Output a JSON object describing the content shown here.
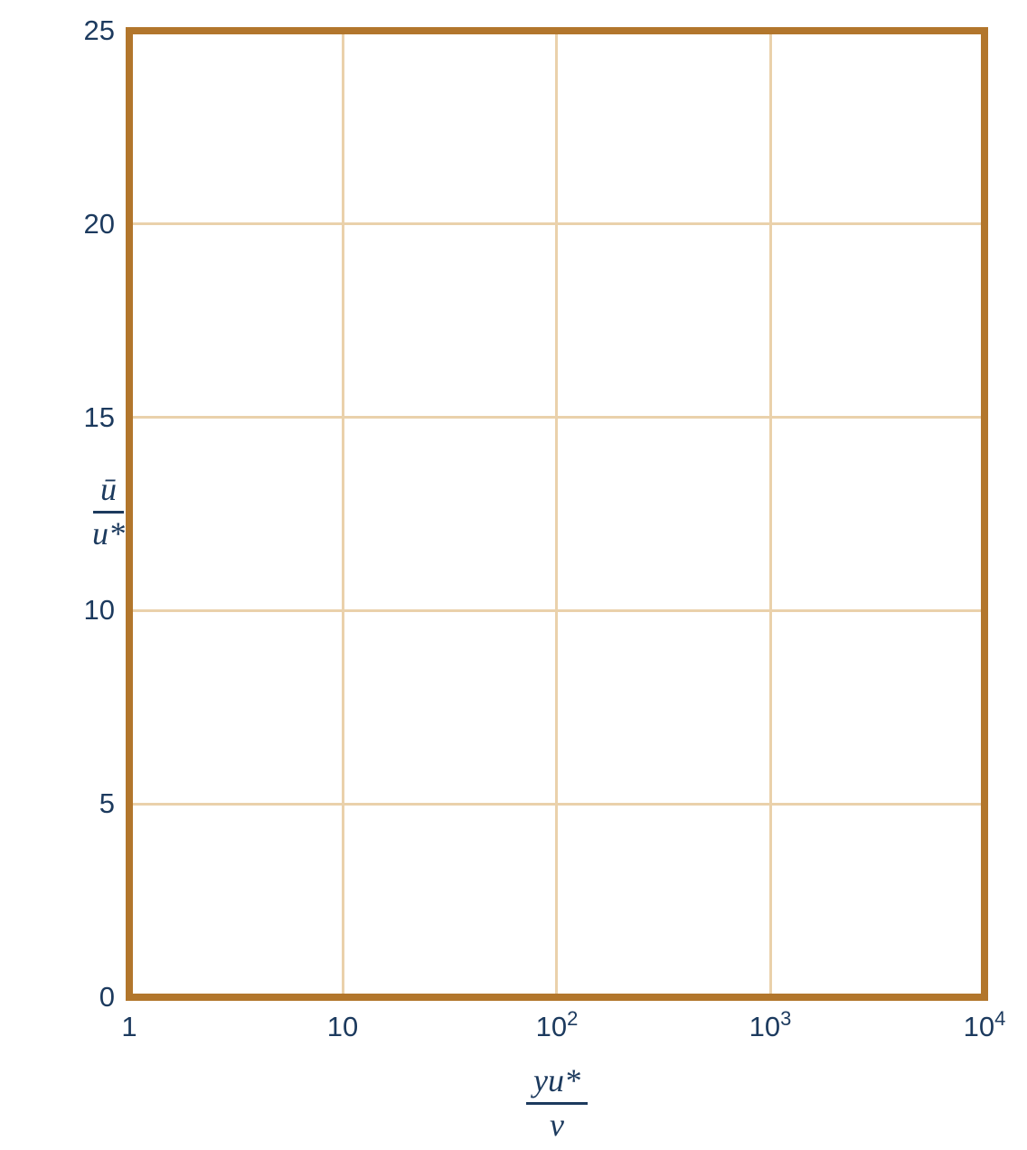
{
  "colors": {
    "background": "#ffffff",
    "plot_border": "#b2762c",
    "grid": "#ead1ab",
    "text": "#1c3a5e"
  },
  "chart_data": {
    "type": "line",
    "title": "",
    "grid": true,
    "legend": false,
    "series": [],
    "x_axis": {
      "scale": "log",
      "range": [
        1,
        10000
      ],
      "title_numerator": "yu*",
      "title_denominator": "v",
      "tick_values": [
        1,
        10,
        100,
        1000,
        10000
      ],
      "tick_labels": [
        {
          "base": "1",
          "exp": ""
        },
        {
          "base": "10",
          "exp": ""
        },
        {
          "base": "10",
          "exp": "2"
        },
        {
          "base": "10",
          "exp": "3"
        },
        {
          "base": "10",
          "exp": "4"
        }
      ]
    },
    "y_axis": {
      "scale": "linear",
      "range": [
        0,
        25
      ],
      "tick_interval": 5,
      "title_numerator": "ū",
      "title_denominator": "u*",
      "tick_values": [
        25,
        20,
        15,
        10,
        5,
        0
      ],
      "tick_labels": [
        "25",
        "20",
        "15",
        "10",
        "5",
        "0"
      ]
    }
  }
}
